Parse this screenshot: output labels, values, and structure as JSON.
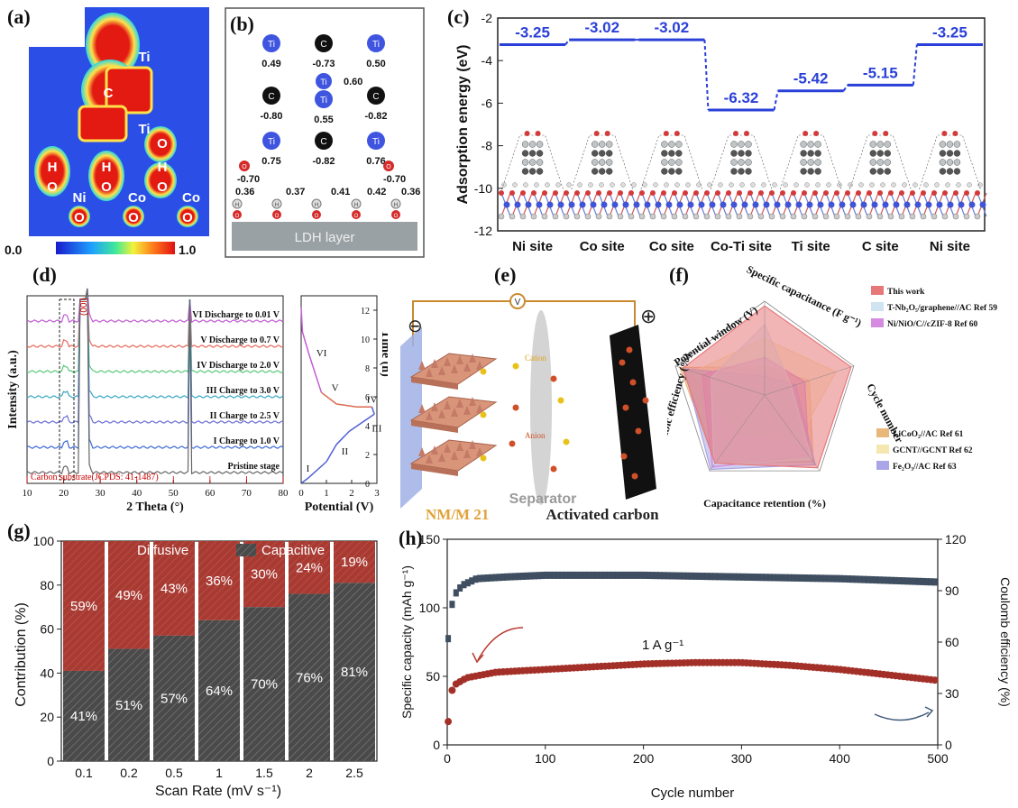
{
  "panel_labels": {
    "a": "(a)",
    "b": "(b)",
    "c": "(c)",
    "d": "(d)",
    "e": "(e)",
    "f": "(f)",
    "g": "(g)",
    "h": "(h)"
  },
  "a": {
    "atoms": [
      "Ti",
      "C",
      "Ti",
      "O",
      "H",
      "O",
      "H",
      "O",
      "H",
      "O",
      "Ni",
      "Co",
      "Co",
      "O",
      "O",
      "O"
    ],
    "scale_min": "0.0",
    "scale_max": "1.0"
  },
  "b": {
    "rows": [
      {
        "atoms": [
          "Ti",
          "C",
          "Ti"
        ],
        "values": [
          "0.49",
          "-0.73",
          "0.50"
        ]
      },
      {
        "atoms": [
          "C",
          "Ti",
          "C"
        ],
        "values": [
          "-0.80",
          "0.55",
          "-0.82"
        ],
        "extra": "0.60"
      },
      {
        "atoms": [
          "Ti",
          "C",
          "Ti"
        ],
        "values": [
          "0.75",
          "-0.82",
          "0.76"
        ]
      }
    ],
    "o_values": [
      "-0.70",
      "-0.70"
    ],
    "h_values": [
      "0.36",
      "0.37",
      "0.41",
      "0.42",
      "0.36"
    ],
    "o_atom": "O",
    "h_atom": "H",
    "layer_label": "LDH layer"
  },
  "chart_c": {
    "type": "step",
    "categories": [
      "Ni site",
      "Co site",
      "Co site",
      "Co-Ti site",
      "Ti site",
      "C site",
      "Ni site"
    ],
    "values": [
      -3.25,
      -3.02,
      -3.02,
      -6.32,
      -5.42,
      -5.15,
      -3.25
    ],
    "value_labels": [
      "-3.25",
      "-3.02",
      "-3.02",
      "-6.32",
      "-5.42",
      "-5.15",
      "-3.25"
    ],
    "ylabel": "Adsorption energy (eV)",
    "ylim": [
      -12,
      -2
    ],
    "yticks": [
      "-2",
      "-4",
      "-6",
      "-8",
      "-10",
      "-12"
    ],
    "color": "#2a40d8"
  },
  "chart_d": {
    "type": "line",
    "xlabel": "2 Theta (°)",
    "ylabel": "Intensity (a.u.)",
    "xticks": [
      "10",
      "20",
      "30",
      "40",
      "50",
      "60",
      "70",
      "80"
    ],
    "peak_label": "(00l)",
    "reference_label": "Carbon substrate(JCPDS: 41-1487)",
    "series": [
      {
        "name": "VI Discharge to 0.01 V",
        "color": "#c35bd6"
      },
      {
        "name": "V Discharge to 0.7 V",
        "color": "#e8695c"
      },
      {
        "name": "IV Discharge to 2.0 V",
        "color": "#5ac97a"
      },
      {
        "name": "III Charge to 3.0 V",
        "color": "#3aa7c2"
      },
      {
        "name": "II Charge to 2.5 V",
        "color": "#6b6fd6"
      },
      {
        "name": "I Charge to 1.0 V",
        "color": "#3d6ad6"
      },
      {
        "name": "Pristine stage",
        "color": "#666666"
      }
    ]
  },
  "chart_d2": {
    "type": "line",
    "xlabel": "Potential (V)",
    "ylabel": "Time (h)",
    "xticks": [
      "0",
      "1",
      "2",
      "3"
    ],
    "yticks": [
      "0",
      "2",
      "4",
      "6",
      "8",
      "10",
      "12"
    ],
    "points": [
      [
        0,
        0
      ],
      [
        0.3,
        0.4
      ],
      [
        1.0,
        1.5
      ],
      [
        1.4,
        2.7
      ],
      [
        1.9,
        3.6
      ],
      [
        2.4,
        4.2
      ],
      [
        2.9,
        4.8
      ],
      [
        2.8,
        5.3
      ],
      [
        2.2,
        5.3
      ],
      [
        1.4,
        5.5
      ],
      [
        0.8,
        6.3
      ],
      [
        0.3,
        9.0
      ],
      [
        0.05,
        10.5
      ],
      [
        0.0,
        12.2
      ]
    ],
    "stage_labels": [
      "I",
      "II",
      "III",
      "IV",
      "V",
      "VI"
    ]
  },
  "e": {
    "labels": {
      "device": "NM/M 21",
      "separator": "Separator",
      "carbon": "Activated carbon",
      "cation": "Cation",
      "anion": "Anion",
      "minus": "⊖",
      "plus": "⊕",
      "meter": "V"
    }
  },
  "chart_f": {
    "type": "radar",
    "axes": [
      "Specific capacitance (F g⁻¹)",
      "Cycle number",
      "Capacitance retention (%)",
      "Coulombic efficiency (%)",
      "Potential window (V)"
    ],
    "series": [
      {
        "name": "This work",
        "color": "#e7787a"
      },
      {
        "name": "T-Nb₂O₅/graphene//AC Ref  59",
        "color": "#cfe3f0"
      },
      {
        "name": "Ni/NiO/C//cZIF-8 Ref 60",
        "color": "#d58ce0"
      },
      {
        "name": "LiCoO₂//AC  Ref 61",
        "color": "#e8b87a"
      },
      {
        "name": "GCNT//GCNT  Ref 62",
        "color": "#f4e7b0"
      },
      {
        "name": "Fe₂O₃//AC Ref 63",
        "color": "#a9a5e6"
      }
    ]
  },
  "chart_g": {
    "type": "bar",
    "categories": [
      "0.1",
      "0.2",
      "0.5",
      "1",
      "1.5",
      "2",
      "2.5"
    ],
    "series": [
      {
        "name": "Capacitive",
        "values": [
          41,
          51,
          57,
          64,
          70,
          76,
          81
        ],
        "color": "#4a4a4a"
      },
      {
        "name": "Diffusive",
        "values": [
          59,
          49,
          43,
          36,
          30,
          24,
          19
        ],
        "color": "#a83a32"
      }
    ],
    "cap_labels": [
      "41%",
      "51%",
      "57%",
      "64%",
      "70%",
      "76%",
      "81%"
    ],
    "dif_labels": [
      "59%",
      "49%",
      "43%",
      "36%",
      "30%",
      "24%",
      "19%"
    ],
    "xlabel": "Scan Rate (mV s⁻¹)",
    "ylabel": "Contribution (%)",
    "yticks": [
      "0",
      "20",
      "40",
      "60",
      "80",
      "100"
    ],
    "ylim": [
      0,
      100
    ]
  },
  "chart_h": {
    "type": "scatter",
    "xlabel": "Cycle number",
    "ylabel_left": "Specific capacity (mAh g⁻¹)",
    "ylabel_right": "Coulomb efficiency (%)",
    "annotation": "1 A g⁻¹",
    "xticks": [
      "0",
      "100",
      "200",
      "300",
      "400",
      "500"
    ],
    "yticks_left": [
      "0",
      "50",
      "100",
      "150"
    ],
    "yticks_right": [
      "0",
      "30",
      "60",
      "90",
      "120"
    ],
    "xlim": [
      0,
      500
    ],
    "ylim_left": [
      0,
      150
    ],
    "ylim_right": [
      0,
      120
    ],
    "capacity": [
      [
        1,
        17
      ],
      [
        3,
        37
      ],
      [
        8,
        44
      ],
      [
        20,
        49
      ],
      [
        50,
        53
      ],
      [
        100,
        55
      ],
      [
        150,
        57
      ],
      [
        200,
        59
      ],
      [
        250,
        60
      ],
      [
        300,
        60
      ],
      [
        350,
        58
      ],
      [
        400,
        55
      ],
      [
        450,
        51
      ],
      [
        500,
        47
      ]
    ],
    "efficiency": [
      [
        1,
        62
      ],
      [
        3,
        78
      ],
      [
        8,
        88
      ],
      [
        15,
        93
      ],
      [
        30,
        97
      ],
      [
        60,
        98
      ],
      [
        100,
        99
      ],
      [
        200,
        99
      ],
      [
        300,
        98
      ],
      [
        400,
        97
      ],
      [
        500,
        95
      ]
    ]
  }
}
